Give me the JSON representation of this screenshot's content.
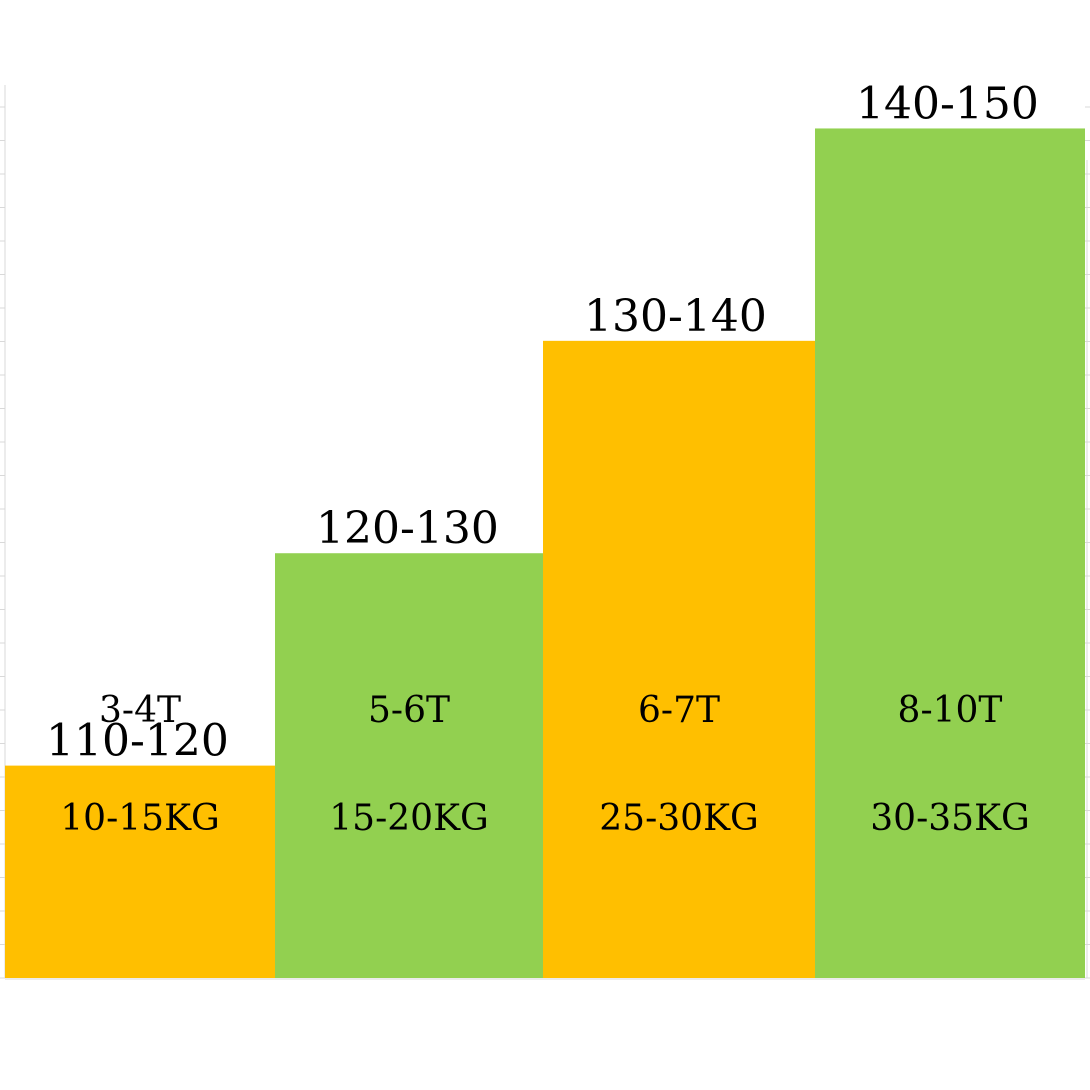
{
  "chart_data": {
    "type": "bar",
    "categories": [
      "110-120",
      "120-130",
      "130-140",
      "140-150"
    ],
    "values": [
      1,
      2,
      3,
      4
    ],
    "ylim": [
      0,
      4.44
    ],
    "grid": false,
    "legend": "none",
    "bars": [
      {
        "top_label": "110-120",
        "age": "3-4T",
        "weight": "10-15KG",
        "color": "#FFBF00"
      },
      {
        "top_label": "120-130",
        "age": "5-6T",
        "weight": "15-20KG",
        "color": "#92D050"
      },
      {
        "top_label": "130-140",
        "age": "6-7T",
        "weight": "25-30KG",
        "color": "#FFBF00"
      },
      {
        "top_label": "140-150",
        "age": "8-10T",
        "weight": "30-35KG",
        "color": "#92D050"
      }
    ]
  },
  "colors": {
    "orange": "#FFBF00",
    "green": "#92D050",
    "axis": "#D9D9D9"
  }
}
